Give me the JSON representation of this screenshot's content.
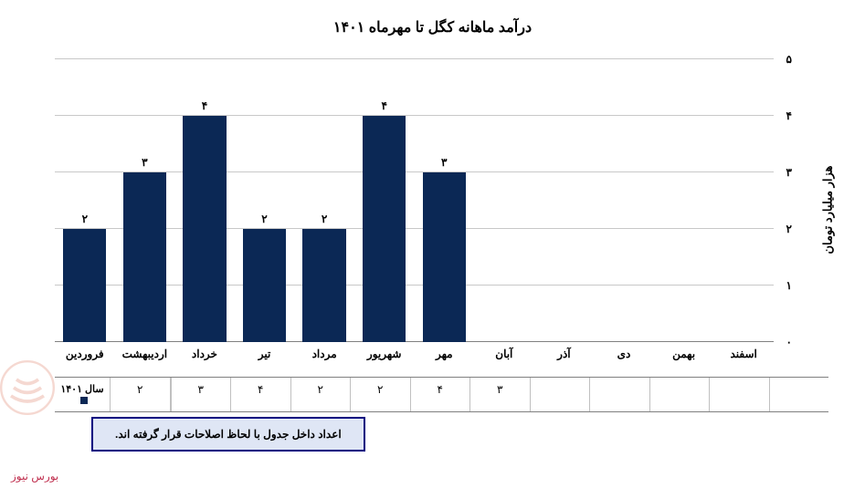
{
  "chart": {
    "type": "bar",
    "title": "درآمد ماهانه کگل تا مهرماه ۱۴۰۱",
    "y_label": "هزار میلیارد تومان",
    "y_ticks": [
      "۰",
      "۱",
      "۲",
      "۳",
      "۴",
      "۵"
    ],
    "ylim": [
      0,
      5
    ],
    "categories": [
      "فروردین",
      "اردیبهشت",
      "خرداد",
      "تیر",
      "مرداد",
      "شهریور",
      "مهر",
      "آبان",
      "آذر",
      "دی",
      "بهمن",
      "اسفند"
    ],
    "series_name": "سال ۱۴۰۱",
    "values": [
      2,
      3,
      4,
      2,
      2,
      4,
      3,
      null,
      null,
      null,
      null,
      null
    ],
    "value_labels": [
      "۲",
      "۳",
      "۴",
      "۲",
      "۲",
      "۴",
      "۳",
      "",
      "",
      "",
      "",
      ""
    ],
    "bar_color": "#0b2855",
    "grid_color": "#c8c8c8",
    "background_color": "#ffffff",
    "title_fontsize": 16,
    "label_fontsize": 12
  },
  "note": "اعداد داخل جدول با لحاظ اصلاحات قرار گرفته اند.",
  "credit": "بورس نیوز",
  "watermark_color": "#d9674a"
}
